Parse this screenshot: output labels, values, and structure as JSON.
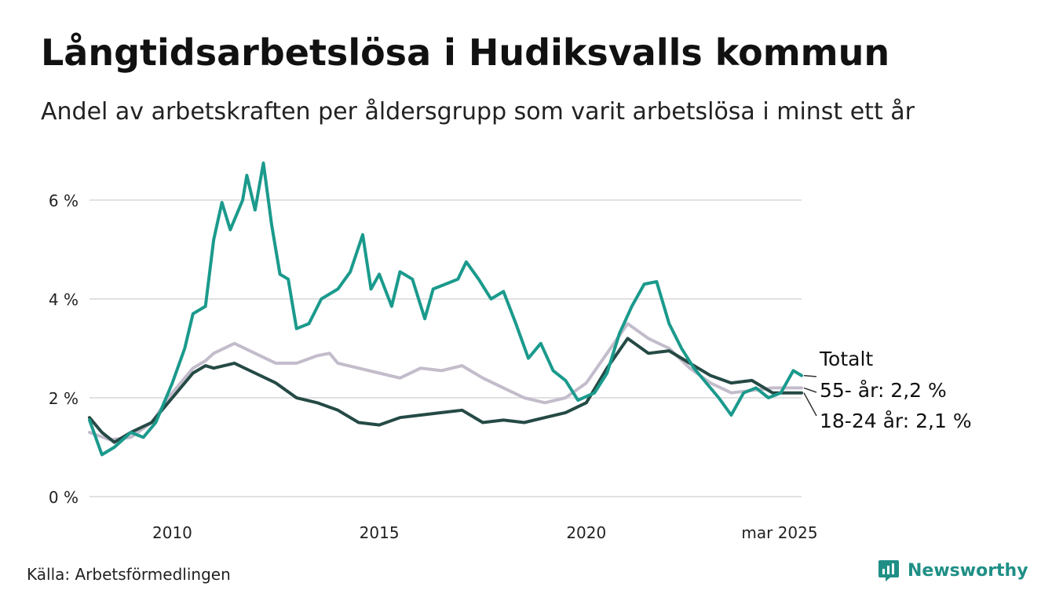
{
  "header": {
    "title": "Långtidsarbetslösa i Hudiksvalls kommun",
    "subtitle": "Andel av arbetskraften per åldersgrupp som varit arbetslösa i minst ett år"
  },
  "footer": {
    "source": "Källa: Arbetsförmedlingen",
    "brand": "Newsworthy",
    "brand_icon": "newsworthy-logo-icon"
  },
  "colors": {
    "totalt": "#1a9a8c",
    "age55": "#c3bccb",
    "age18_24": "#254a45",
    "grid": "#e1e1e1",
    "brand": "#1f8f86"
  },
  "chart_data": {
    "type": "line",
    "ylim": [
      0,
      6.8
    ],
    "y_ticks": [
      {
        "value": 0,
        "label": "0 %"
      },
      {
        "value": 2,
        "label": "2 %"
      },
      {
        "value": 4,
        "label": "4 %"
      },
      {
        "value": 6,
        "label": "6 %"
      }
    ],
    "x_range": [
      2008.0,
      2025.2
    ],
    "x_ticks": [
      {
        "value": 2010,
        "label": "2010"
      },
      {
        "value": 2015,
        "label": "2015"
      },
      {
        "value": 2020,
        "label": "2020"
      },
      {
        "value": 2025.2,
        "label": "mar 2025"
      }
    ],
    "grid": true,
    "series": [
      {
        "key": "age55",
        "name": "55- år",
        "end_label": "55- år: 2,2 %",
        "points": [
          [
            2008.0,
            1.3
          ],
          [
            2008.5,
            1.15
          ],
          [
            2009.0,
            1.2
          ],
          [
            2009.5,
            1.5
          ],
          [
            2010.0,
            2.1
          ],
          [
            2010.5,
            2.6
          ],
          [
            2010.8,
            2.75
          ],
          [
            2011.0,
            2.9
          ],
          [
            2011.5,
            3.1
          ],
          [
            2012.0,
            2.9
          ],
          [
            2012.5,
            2.7
          ],
          [
            2013.0,
            2.7
          ],
          [
            2013.5,
            2.85
          ],
          [
            2013.8,
            2.9
          ],
          [
            2014.0,
            2.7
          ],
          [
            2014.5,
            2.6
          ],
          [
            2015.0,
            2.5
          ],
          [
            2015.5,
            2.4
          ],
          [
            2016.0,
            2.6
          ],
          [
            2016.5,
            2.55
          ],
          [
            2017.0,
            2.65
          ],
          [
            2017.5,
            2.4
          ],
          [
            2018.0,
            2.2
          ],
          [
            2018.5,
            2.0
          ],
          [
            2019.0,
            1.9
          ],
          [
            2019.5,
            2.0
          ],
          [
            2020.0,
            2.3
          ],
          [
            2020.5,
            2.9
          ],
          [
            2021.0,
            3.5
          ],
          [
            2021.5,
            3.2
          ],
          [
            2022.0,
            3.0
          ],
          [
            2022.5,
            2.6
          ],
          [
            2023.0,
            2.3
          ],
          [
            2023.5,
            2.1
          ],
          [
            2024.0,
            2.15
          ],
          [
            2024.5,
            2.2
          ],
          [
            2025.2,
            2.2
          ]
        ]
      },
      {
        "key": "age18_24",
        "name": "18-24 år",
        "end_label": "18-24 år: 2,1 %",
        "points": [
          [
            2008.0,
            1.6
          ],
          [
            2008.3,
            1.3
          ],
          [
            2008.6,
            1.1
          ],
          [
            2009.0,
            1.3
          ],
          [
            2009.5,
            1.5
          ],
          [
            2010.0,
            2.0
          ],
          [
            2010.5,
            2.5
          ],
          [
            2010.8,
            2.65
          ],
          [
            2011.0,
            2.6
          ],
          [
            2011.5,
            2.7
          ],
          [
            2012.0,
            2.5
          ],
          [
            2012.5,
            2.3
          ],
          [
            2013.0,
            2.0
          ],
          [
            2013.5,
            1.9
          ],
          [
            2014.0,
            1.75
          ],
          [
            2014.5,
            1.5
          ],
          [
            2015.0,
            1.45
          ],
          [
            2015.5,
            1.6
          ],
          [
            2016.0,
            1.65
          ],
          [
            2016.5,
            1.7
          ],
          [
            2017.0,
            1.75
          ],
          [
            2017.5,
            1.5
          ],
          [
            2018.0,
            1.55
          ],
          [
            2018.5,
            1.5
          ],
          [
            2019.0,
            1.6
          ],
          [
            2019.5,
            1.7
          ],
          [
            2020.0,
            1.9
          ],
          [
            2020.5,
            2.6
          ],
          [
            2021.0,
            3.2
          ],
          [
            2021.5,
            2.9
          ],
          [
            2022.0,
            2.95
          ],
          [
            2022.5,
            2.7
          ],
          [
            2023.0,
            2.45
          ],
          [
            2023.5,
            2.3
          ],
          [
            2024.0,
            2.35
          ],
          [
            2024.5,
            2.1
          ],
          [
            2025.2,
            2.1
          ]
        ]
      },
      {
        "key": "totalt",
        "name": "Totalt",
        "end_label": "Totalt",
        "points": [
          [
            2008.0,
            1.55
          ],
          [
            2008.3,
            0.85
          ],
          [
            2008.6,
            1.0
          ],
          [
            2009.0,
            1.3
          ],
          [
            2009.3,
            1.2
          ],
          [
            2009.6,
            1.5
          ],
          [
            2010.0,
            2.3
          ],
          [
            2010.3,
            3.0
          ],
          [
            2010.5,
            3.7
          ],
          [
            2010.8,
            3.85
          ],
          [
            2011.0,
            5.2
          ],
          [
            2011.2,
            5.95
          ],
          [
            2011.4,
            5.4
          ],
          [
            2011.7,
            6.0
          ],
          [
            2011.8,
            6.5
          ],
          [
            2012.0,
            5.8
          ],
          [
            2012.2,
            6.75
          ],
          [
            2012.4,
            5.5
          ],
          [
            2012.6,
            4.5
          ],
          [
            2012.8,
            4.4
          ],
          [
            2013.0,
            3.4
          ],
          [
            2013.3,
            3.5
          ],
          [
            2013.6,
            4.0
          ],
          [
            2014.0,
            4.2
          ],
          [
            2014.3,
            4.55
          ],
          [
            2014.6,
            5.3
          ],
          [
            2014.8,
            4.2
          ],
          [
            2015.0,
            4.5
          ],
          [
            2015.3,
            3.85
          ],
          [
            2015.5,
            4.55
          ],
          [
            2015.8,
            4.4
          ],
          [
            2016.1,
            3.6
          ],
          [
            2016.3,
            4.2
          ],
          [
            2016.6,
            4.3
          ],
          [
            2016.9,
            4.4
          ],
          [
            2017.1,
            4.75
          ],
          [
            2017.4,
            4.4
          ],
          [
            2017.7,
            4.0
          ],
          [
            2018.0,
            4.15
          ],
          [
            2018.3,
            3.5
          ],
          [
            2018.6,
            2.8
          ],
          [
            2018.9,
            3.1
          ],
          [
            2019.2,
            2.55
          ],
          [
            2019.5,
            2.35
          ],
          [
            2019.8,
            1.95
          ],
          [
            2020.2,
            2.1
          ],
          [
            2020.5,
            2.5
          ],
          [
            2020.8,
            3.3
          ],
          [
            2021.1,
            3.85
          ],
          [
            2021.4,
            4.3
          ],
          [
            2021.7,
            4.35
          ],
          [
            2022.0,
            3.5
          ],
          [
            2022.3,
            3.0
          ],
          [
            2022.6,
            2.6
          ],
          [
            2022.9,
            2.3
          ],
          [
            2023.2,
            2.0
          ],
          [
            2023.5,
            1.65
          ],
          [
            2023.8,
            2.1
          ],
          [
            2024.1,
            2.2
          ],
          [
            2024.4,
            2.0
          ],
          [
            2024.7,
            2.1
          ],
          [
            2025.0,
            2.55
          ],
          [
            2025.2,
            2.45
          ]
        ]
      }
    ]
  }
}
